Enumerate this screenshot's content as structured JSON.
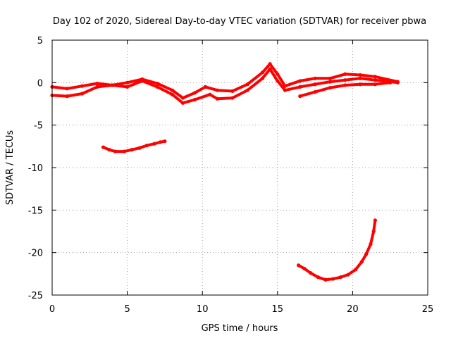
{
  "chart_data": {
    "type": "scatter",
    "title": "Day 102 of 2020, Sidereal Day-to-day VTEC variation (SDTVAR) for receiver pbwa",
    "xlabel": "GPS time / hours",
    "ylabel": "SDTVAR / TECUs",
    "xlim": [
      0,
      25
    ],
    "ylim": [
      -25,
      5
    ],
    "x_ticks": [
      0,
      5,
      10,
      15,
      20,
      25
    ],
    "y_ticks": [
      5,
      0,
      -5,
      -10,
      -15,
      -20,
      -25
    ],
    "grid": true,
    "color": "#ff0000",
    "series": [
      {
        "name": "main-band-upper",
        "points": [
          [
            0,
            -0.5
          ],
          [
            1,
            -0.7
          ],
          [
            2,
            -0.4
          ],
          [
            3,
            -0.1
          ],
          [
            4,
            -0.3
          ],
          [
            5,
            0.0
          ],
          [
            6,
            0.4
          ],
          [
            7,
            -0.1
          ],
          [
            8,
            -0.9
          ],
          [
            8.7,
            -1.8
          ],
          [
            9.5,
            -1.2
          ],
          [
            10.2,
            -0.5
          ],
          [
            11,
            -0.9
          ],
          [
            12,
            -1.0
          ],
          [
            13,
            -0.2
          ],
          [
            14,
            1.2
          ],
          [
            14.5,
            2.2
          ],
          [
            15,
            1.0
          ],
          [
            15.5,
            -0.4
          ],
          [
            16.5,
            0.2
          ],
          [
            17.5,
            0.5
          ],
          [
            18.5,
            0.5
          ],
          [
            19.5,
            1.0
          ],
          [
            20.5,
            0.9
          ],
          [
            21.5,
            0.7
          ],
          [
            23,
            0.1
          ]
        ]
      },
      {
        "name": "main-band-lower",
        "points": [
          [
            0,
            -1.5
          ],
          [
            1,
            -1.6
          ],
          [
            2,
            -1.3
          ],
          [
            3,
            -0.5
          ],
          [
            4,
            -0.3
          ],
          [
            5,
            -0.5
          ],
          [
            6,
            0.2
          ],
          [
            7,
            -0.5
          ],
          [
            8,
            -1.4
          ],
          [
            8.7,
            -2.4
          ],
          [
            9.5,
            -2.0
          ],
          [
            10.5,
            -1.4
          ],
          [
            11,
            -1.9
          ],
          [
            12,
            -1.8
          ],
          [
            13,
            -0.9
          ],
          [
            14,
            0.5
          ],
          [
            14.5,
            1.6
          ],
          [
            15,
            0.2
          ],
          [
            15.5,
            -0.9
          ],
          [
            16.5,
            -0.5
          ],
          [
            17.5,
            -0.2
          ],
          [
            18.5,
            0.1
          ],
          [
            19.5,
            0.3
          ],
          [
            20.5,
            0.5
          ],
          [
            21.5,
            0.3
          ],
          [
            23,
            0.0
          ]
        ]
      },
      {
        "name": "late-secondary",
        "points": [
          [
            16.5,
            -1.6
          ],
          [
            17.5,
            -1.1
          ],
          [
            18.5,
            -0.6
          ],
          [
            19.5,
            -0.3
          ],
          [
            20.5,
            -0.2
          ],
          [
            21.5,
            -0.2
          ],
          [
            22.5,
            0.0
          ]
        ]
      },
      {
        "name": "arc-morning",
        "points": [
          [
            3.4,
            -7.6
          ],
          [
            3.8,
            -7.9
          ],
          [
            4.2,
            -8.1
          ],
          [
            4.8,
            -8.1
          ],
          [
            5.3,
            -7.9
          ],
          [
            5.8,
            -7.7
          ],
          [
            6.3,
            -7.4
          ],
          [
            6.8,
            -7.2
          ],
          [
            7.2,
            -7.0
          ],
          [
            7.5,
            -6.9
          ]
        ]
      },
      {
        "name": "arc-evening",
        "points": [
          [
            16.4,
            -21.5
          ],
          [
            16.8,
            -21.9
          ],
          [
            17.2,
            -22.4
          ],
          [
            17.7,
            -22.9
          ],
          [
            18.2,
            -23.2
          ],
          [
            18.7,
            -23.1
          ],
          [
            19.2,
            -22.9
          ],
          [
            19.7,
            -22.6
          ],
          [
            20.2,
            -22.0
          ],
          [
            20.6,
            -21.1
          ],
          [
            20.9,
            -20.2
          ],
          [
            21.2,
            -19.0
          ],
          [
            21.4,
            -17.5
          ],
          [
            21.5,
            -16.2
          ]
        ]
      }
    ]
  }
}
